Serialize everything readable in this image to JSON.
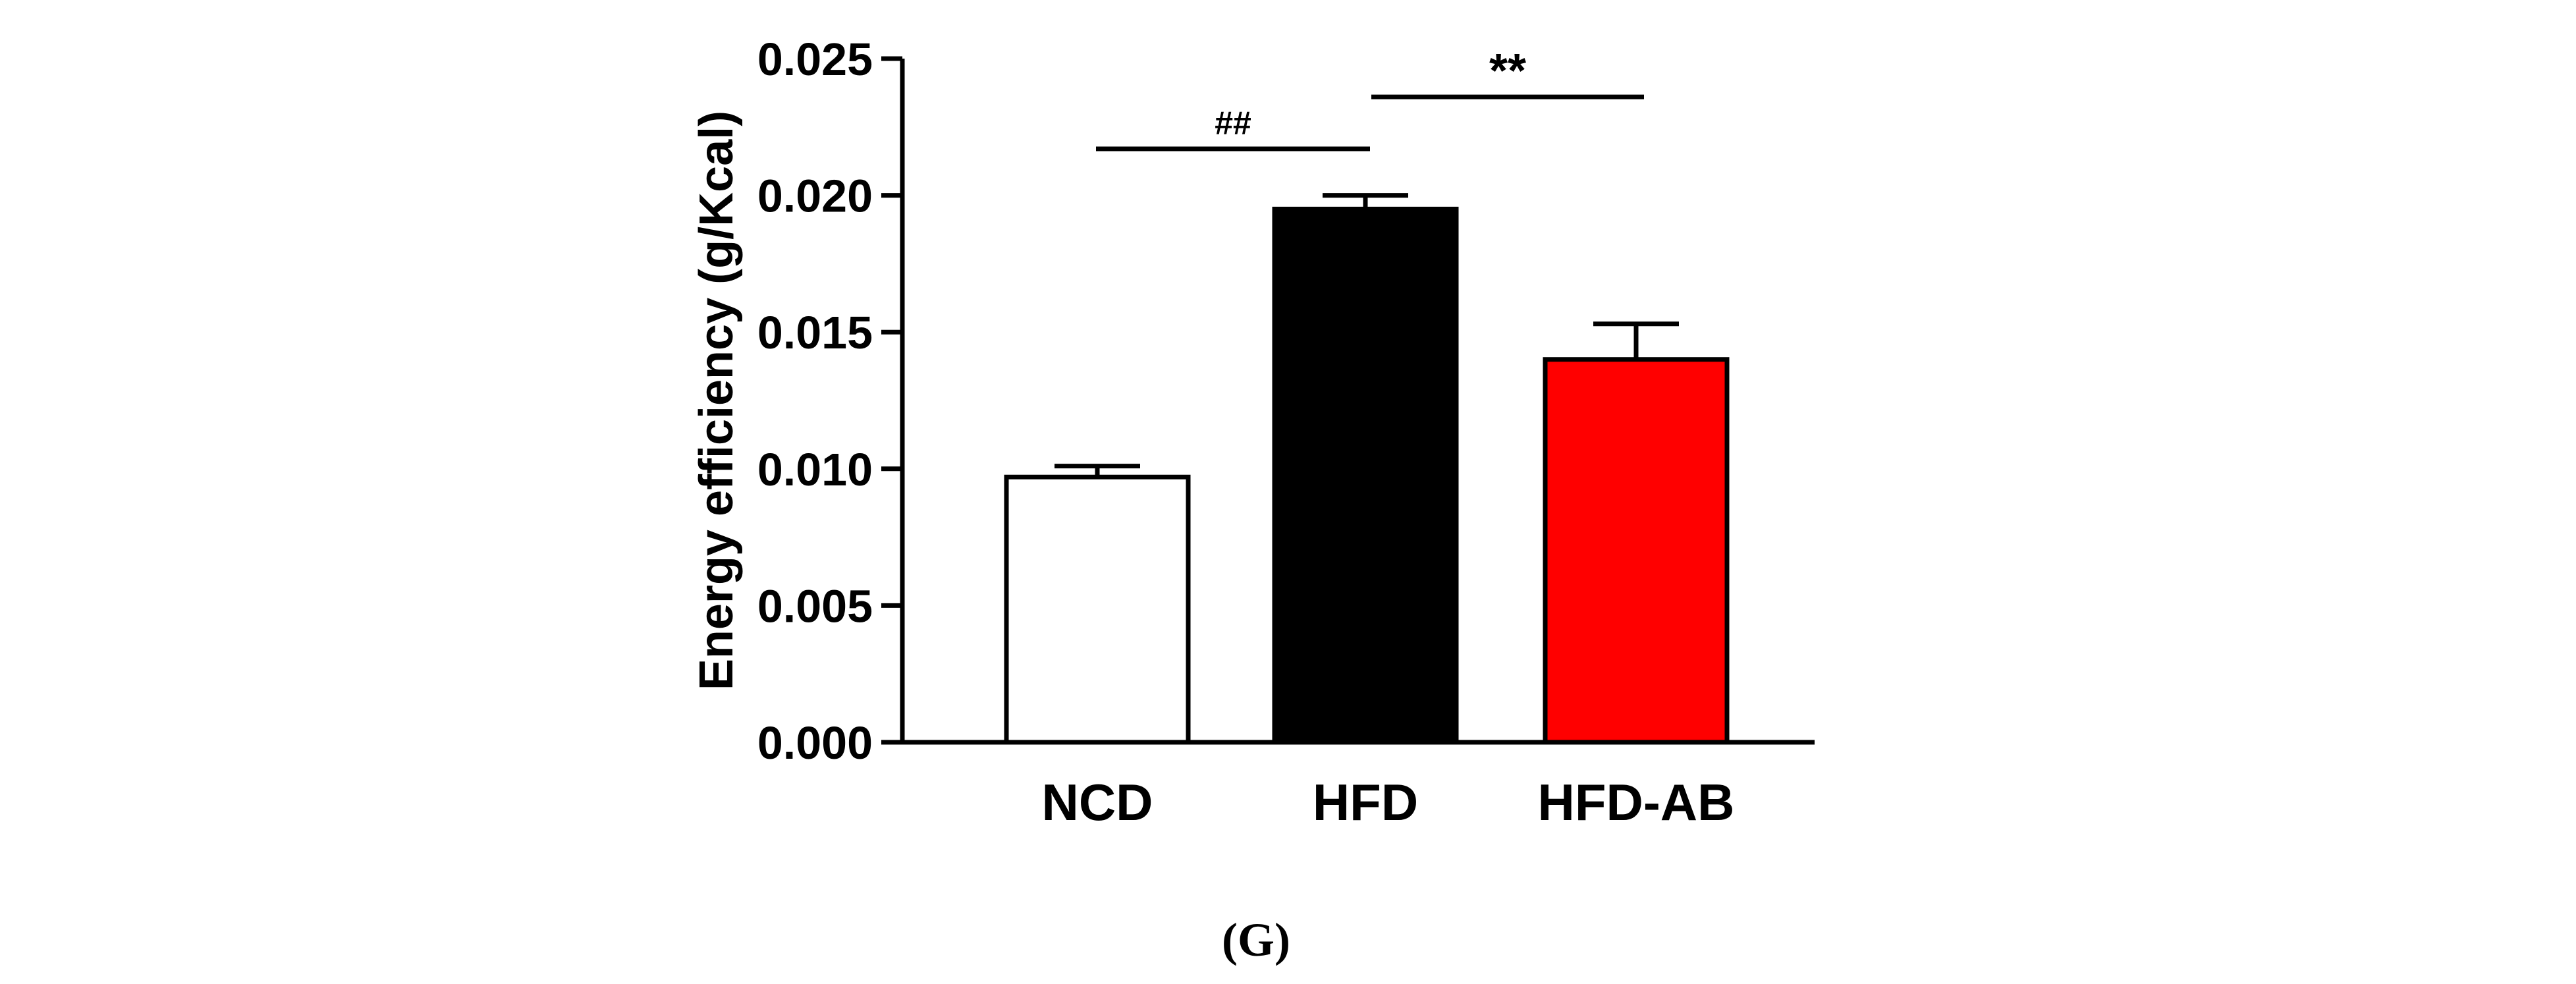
{
  "chart_data": {
    "type": "bar",
    "categories": [
      "NCD",
      "HFD",
      "HFD-AB"
    ],
    "values": [
      0.0097,
      0.0195,
      0.014
    ],
    "errors": [
      0.0004,
      0.0005,
      0.0013
    ],
    "ylabel": "Energy efficiency (g/Kcal)",
    "xlabel": "",
    "ylim": [
      0.0,
      0.025
    ],
    "yticks": [
      "0.000",
      "0.005",
      "0.010",
      "0.015",
      "0.020",
      "0.025"
    ],
    "ytick_values": [
      0.0,
      0.005,
      0.01,
      0.015,
      0.02,
      0.025
    ],
    "bar_colors": [
      "#ffffff",
      "#000000",
      "#ff0000"
    ],
    "significance": [
      {
        "label": "##",
        "from": "NCD",
        "to": "HFD",
        "level": 0.0217
      },
      {
        "label": "**",
        "from": "HFD",
        "to": "HFD-AB",
        "level": 0.0236
      }
    ],
    "panel_label": "(G)"
  }
}
